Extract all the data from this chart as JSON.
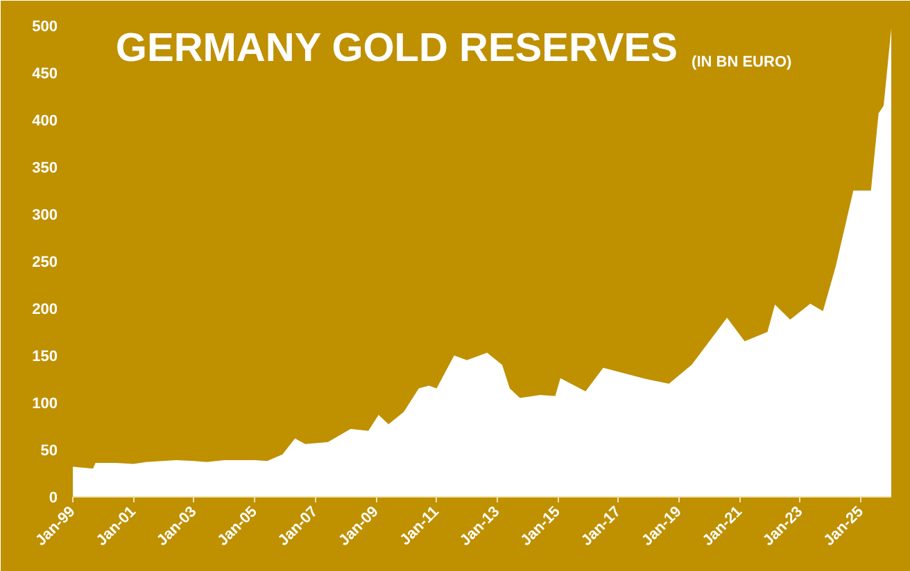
{
  "chart_data": {
    "type": "area",
    "title": "GERMANY GOLD RESERVES",
    "subtitle": "(IN BN EURO)",
    "x": [
      "1999-01",
      "1999-09",
      "1999-10",
      "2000-06",
      "2001-01",
      "2001-06",
      "2002-06",
      "2003-01",
      "2003-06",
      "2004-01",
      "2005-01",
      "2005-06",
      "2005-12",
      "2006-05",
      "2006-09",
      "2007-06",
      "2008-03",
      "2008-10",
      "2009-02",
      "2009-06",
      "2009-12",
      "2010-06",
      "2010-10",
      "2011-01",
      "2011-08",
      "2012-01",
      "2012-09",
      "2013-03",
      "2013-06",
      "2013-10",
      "2014-06",
      "2014-12",
      "2015-02",
      "2015-12",
      "2016-07",
      "2017-12",
      "2018-09",
      "2019-06",
      "2020-08",
      "2021-03",
      "2021-12",
      "2022-03",
      "2022-09",
      "2023-05",
      "2023-10",
      "2024-03",
      "2024-10",
      "2025-05",
      "2025-08",
      "2025-10",
      "2026-01"
    ],
    "series": [
      {
        "color": "#ffffff",
        "values": [
          32,
          30,
          36,
          36,
          35,
          37,
          39,
          38,
          37,
          39,
          39,
          38,
          45,
          62,
          56,
          58,
          72,
          70,
          87,
          77,
          90,
          115,
          118,
          115,
          150,
          145,
          153,
          140,
          115,
          105,
          108,
          107,
          126,
          112,
          137,
          125,
          120,
          140,
          190,
          165,
          175,
          204,
          188,
          205,
          197,
          244,
          325,
          325,
          407,
          415,
          497
        ]
      }
    ],
    "xlim": [
      "1999-01",
      "2026-01"
    ],
    "xticks": [
      {
        "value": "1999-01",
        "label": "Jan-99"
      },
      {
        "value": "2001-01",
        "label": "Jan-01"
      },
      {
        "value": "2003-01",
        "label": "Jan-03"
      },
      {
        "value": "2005-01",
        "label": "Jan-05"
      },
      {
        "value": "2007-01",
        "label": "Jan-07"
      },
      {
        "value": "2009-01",
        "label": "Jan-09"
      },
      {
        "value": "2011-01",
        "label": "Jan-11"
      },
      {
        "value": "2013-01",
        "label": "Jan-13"
      },
      {
        "value": "2015-01",
        "label": "Jan-15"
      },
      {
        "value": "2017-01",
        "label": "Jan-17"
      },
      {
        "value": "2019-01",
        "label": "Jan-19"
      },
      {
        "value": "2021-01",
        "label": "Jan-21"
      },
      {
        "value": "2023-01",
        "label": "Jan-23"
      },
      {
        "value": "2025-01",
        "label": "Jan-25"
      }
    ],
    "ylim": [
      0,
      500
    ],
    "yticks": [
      0,
      50,
      100,
      150,
      200,
      250,
      300,
      350,
      400,
      450,
      500
    ],
    "grid": false
  }
}
